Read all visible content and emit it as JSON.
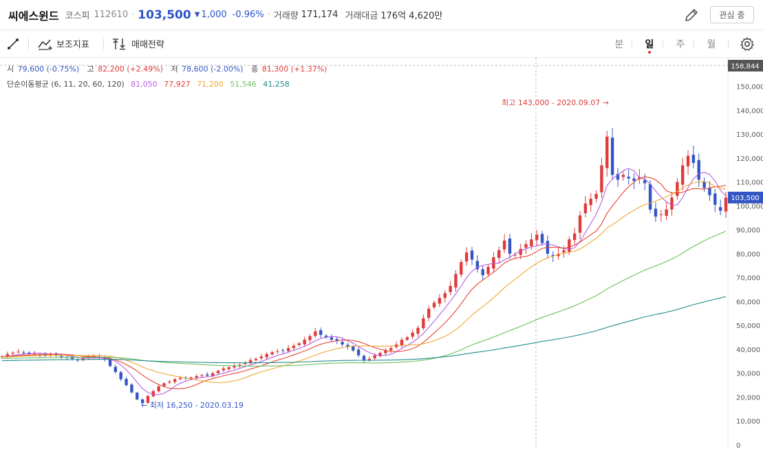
{
  "header": {
    "stock_name": "씨에스윈드",
    "market": "코스피",
    "code": "112610",
    "separator": "·",
    "price": "103,500",
    "change": "1,000",
    "change_rate": "-0.96%",
    "direction": "down",
    "volume_label": "거래량",
    "volume": "171,174",
    "amount_label": "거래대금",
    "amount": "176억 4,620만",
    "watch_button": "관심 중",
    "down_color": "#2c54c7"
  },
  "toolbar": {
    "indicator_label": "보조지표",
    "strategy_label": "매매전략",
    "periods": [
      "분",
      "일",
      "주",
      "월"
    ],
    "active_period": "일"
  },
  "legend": {
    "open_label": "시",
    "open_value": "79,600 (-0.75%)",
    "high_label": "고",
    "high_value": "82,200 (+2.49%)",
    "low_label": "저",
    "low_value": "78,600 (-2.00%)",
    "close_label": "종",
    "close_value": "81,300 (+1.37%)",
    "ma_label": "단순이동평균 (6, 11, 20, 60, 120)",
    "ma_values": [
      "81,050",
      "77,927",
      "71,200",
      "51,546",
      "41,258"
    ],
    "ma_colors": [
      "#b45ce0",
      "#e8412e",
      "#f0a531",
      "#6cbf5a",
      "#1f8a8a"
    ]
  },
  "chart_data": {
    "type": "candlestick",
    "y_axis_ticks": [
      "150,000",
      "140,000",
      "130,000",
      "120,000",
      "110,000",
      "100,000",
      "90,000",
      "80,000",
      "70,000",
      "60,000",
      "50,000",
      "40,000",
      "30,000",
      "20,000",
      "10,000",
      "0"
    ],
    "ylim": [
      0,
      158844
    ],
    "top_marker": "158,844",
    "current_marker": "103,500",
    "current_value": 103500,
    "annotations": {
      "high": "최고 143,000 - 2020.09.07",
      "low": "최저 16,250 - 2020.03.19"
    },
    "up_color": "#e03a3a",
    "down_color": "#3356c4",
    "closes": [
      37000,
      38000,
      38500,
      39000,
      38600,
      38000,
      38300,
      37800,
      37600,
      37900,
      37400,
      36800,
      36500,
      36000,
      35600,
      36200,
      36800,
      37200,
      36500,
      35800,
      33000,
      30500,
      27500,
      25000,
      22000,
      19000,
      17500,
      20500,
      22500,
      24500,
      25800,
      26500,
      27500,
      28000,
      27800,
      28200,
      28800,
      29200,
      29000,
      30000,
      31000,
      32000,
      32500,
      33000,
      33500,
      34500,
      35500,
      36000,
      37000,
      38000,
      38800,
      39200,
      39500,
      40500,
      41500,
      42500,
      44000,
      45500,
      47500,
      46000,
      45000,
      44000,
      43500,
      42000,
      41000,
      39500,
      37500,
      35500,
      36000,
      37500,
      38500,
      39500,
      40500,
      42000,
      44000,
      45000,
      47000,
      49000,
      53000,
      57000,
      59500,
      61500,
      63500,
      66500,
      71500,
      76500,
      80500,
      77500,
      73500,
      71000,
      74500,
      78500,
      81500,
      85500,
      80000,
      79500,
      82000,
      84000,
      86000,
      88000,
      84500,
      80000,
      79000,
      80000,
      81500,
      86000,
      88500,
      96000,
      101000,
      103000,
      105000,
      117000,
      129000,
      113000,
      111000,
      113000,
      111500,
      110500,
      112000,
      109500,
      98500,
      95500,
      96500,
      98500,
      103500,
      110000,
      117000,
      121000,
      118000,
      111000,
      107500,
      104500,
      100500,
      98000,
      103500
    ]
  }
}
